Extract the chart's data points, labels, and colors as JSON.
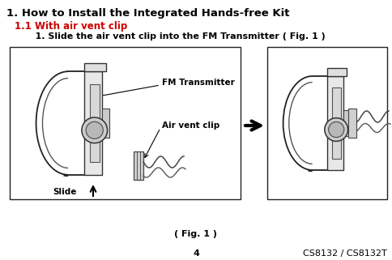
{
  "bg_color": "#ffffff",
  "title": "1. How to Install the Integrated Hands-free Kit",
  "title_fontsize": 9.5,
  "subtitle_color": "#cc0000",
  "subtitle": "1.1 With air vent clip",
  "subtitle_fontsize": 8.5,
  "instruction": "    1. Slide the air vent clip into the FM Transmitter ( Fig. 1 )",
  "instruction_fontsize": 8,
  "fig_caption": "( Fig. 1 )",
  "fig_caption_fontsize": 8,
  "page_number": "4",
  "model_number": "CS8132 / CS8132T",
  "footer_fontsize": 8,
  "label_fm": "FM Transmitter",
  "label_air": "Air vent clip",
  "label_slide": "Slide"
}
